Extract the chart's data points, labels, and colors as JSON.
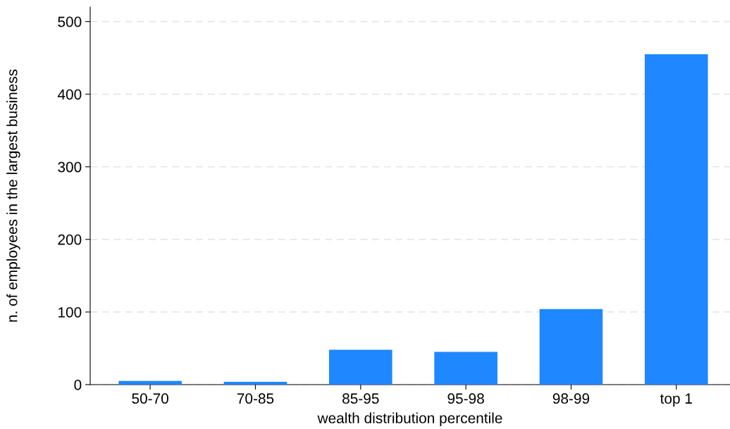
{
  "chart_data": {
    "type": "bar",
    "xlabel": "wealth distribution percentile",
    "ylabel": "n. of employees in the largest business",
    "categories": [
      "50-70",
      "70-85",
      "85-95",
      "95-98",
      "98-99",
      "top 1"
    ],
    "values": [
      5,
      4,
      48,
      45,
      104,
      455
    ],
    "color": "#1f87ff",
    "ylim": [
      0,
      520
    ],
    "yticks": [
      0,
      100,
      200,
      300,
      400,
      500
    ],
    "grid": "y",
    "legend": false
  }
}
